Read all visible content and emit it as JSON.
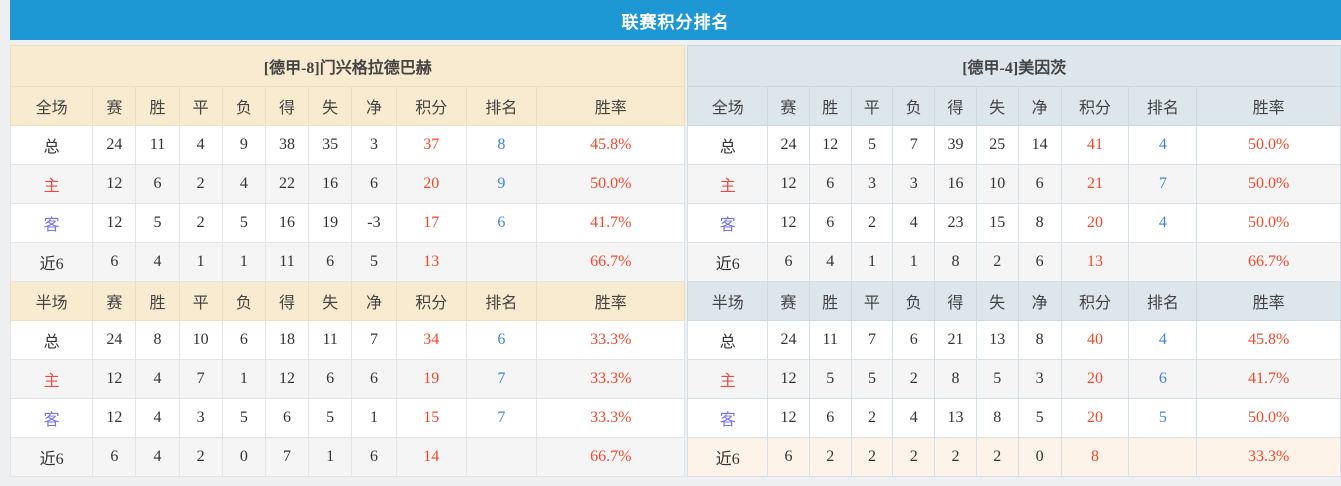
{
  "title": "联赛积分排名",
  "colors": {
    "accent": "#1e97d5",
    "left-header-bg": "#f9ebcf",
    "right-header-bg": "#dde6eb",
    "alt-row-bg": "#f5f5f5",
    "highlight-bg": "#fdf3e8",
    "points-color": "#f4482c",
    "rank-color": "#3f84d6",
    "home-color": "#e84c44",
    "away-color": "#7373f1"
  },
  "tables": [
    {
      "team_header": "[德甲-8]门兴格拉德巴赫",
      "sections": [
        {
          "header": [
            "全场",
            "赛",
            "胜",
            "平",
            "负",
            "得",
            "失",
            "净",
            "积分",
            "排名",
            "胜率"
          ],
          "rows": [
            {
              "label": "总",
              "type": "total",
              "values": [
                24,
                11,
                4,
                9,
                38,
                35,
                3
              ],
              "points": "37",
              "rank": "8",
              "rate": "45.8%"
            },
            {
              "label": "主",
              "type": "home",
              "values": [
                12,
                6,
                2,
                4,
                22,
                16,
                6
              ],
              "points": "20",
              "rank": "9",
              "rate": "50.0%"
            },
            {
              "label": "客",
              "type": "away",
              "values": [
                12,
                5,
                2,
                5,
                16,
                19,
                -3
              ],
              "points": "17",
              "rank": "6",
              "rate": "41.7%"
            },
            {
              "label": "近6",
              "type": "recent",
              "values": [
                6,
                4,
                1,
                1,
                11,
                6,
                5
              ],
              "points": "13",
              "rank": "",
              "rate": "66.7%"
            }
          ]
        },
        {
          "header": [
            "半场",
            "赛",
            "胜",
            "平",
            "负",
            "得",
            "失",
            "净",
            "积分",
            "排名",
            "胜率"
          ],
          "rows": [
            {
              "label": "总",
              "type": "total",
              "values": [
                24,
                8,
                10,
                6,
                18,
                11,
                7
              ],
              "points": "34",
              "rank": "6",
              "rate": "33.3%"
            },
            {
              "label": "主",
              "type": "home",
              "values": [
                12,
                4,
                7,
                1,
                12,
                6,
                6
              ],
              "points": "19",
              "rank": "7",
              "rate": "33.3%"
            },
            {
              "label": "客",
              "type": "away",
              "values": [
                12,
                4,
                3,
                5,
                6,
                5,
                1
              ],
              "points": "15",
              "rank": "7",
              "rate": "33.3%"
            },
            {
              "label": "近6",
              "type": "recent",
              "values": [
                6,
                4,
                2,
                0,
                7,
                1,
                6
              ],
              "points": "14",
              "rank": "",
              "rate": "66.7%"
            }
          ]
        }
      ]
    },
    {
      "team_header": "[德甲-4]美因茨",
      "sections": [
        {
          "header": [
            "全场",
            "赛",
            "胜",
            "平",
            "负",
            "得",
            "失",
            "净",
            "积分",
            "排名",
            "胜率"
          ],
          "rows": [
            {
              "label": "总",
              "type": "total",
              "values": [
                24,
                12,
                5,
                7,
                39,
                25,
                14
              ],
              "points": "41",
              "rank": "4",
              "rate": "50.0%"
            },
            {
              "label": "主",
              "type": "home",
              "values": [
                12,
                6,
                3,
                3,
                16,
                10,
                6
              ],
              "points": "21",
              "rank": "7",
              "rate": "50.0%"
            },
            {
              "label": "客",
              "type": "away",
              "values": [
                12,
                6,
                2,
                4,
                23,
                15,
                8
              ],
              "points": "20",
              "rank": "4",
              "rate": "50.0%"
            },
            {
              "label": "近6",
              "type": "recent",
              "values": [
                6,
                4,
                1,
                1,
                8,
                2,
                6
              ],
              "points": "13",
              "rank": "",
              "rate": "66.7%"
            }
          ]
        },
        {
          "header": [
            "半场",
            "赛",
            "胜",
            "平",
            "负",
            "得",
            "失",
            "净",
            "积分",
            "排名",
            "胜率"
          ],
          "rows": [
            {
              "label": "总",
              "type": "total",
              "values": [
                24,
                11,
                7,
                6,
                21,
                13,
                8
              ],
              "points": "40",
              "rank": "4",
              "rate": "45.8%"
            },
            {
              "label": "主",
              "type": "home",
              "values": [
                12,
                5,
                5,
                2,
                8,
                5,
                3
              ],
              "points": "20",
              "rank": "6",
              "rate": "41.7%"
            },
            {
              "label": "客",
              "type": "away",
              "values": [
                12,
                6,
                2,
                4,
                13,
                8,
                5
              ],
              "points": "20",
              "rank": "5",
              "rate": "50.0%"
            },
            {
              "label": "近6",
              "type": "recent",
              "values": [
                6,
                2,
                2,
                2,
                2,
                2,
                0
              ],
              "points": "8",
              "rank": "",
              "rate": "33.3%"
            }
          ]
        }
      ]
    }
  ]
}
